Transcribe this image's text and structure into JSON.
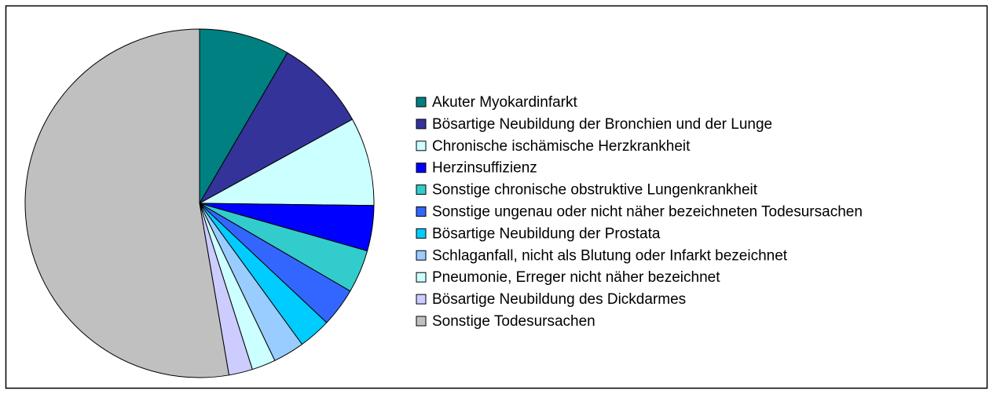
{
  "chart_data": {
    "type": "pie",
    "categories": [
      "Akuter Myokardinfarkt",
      "Bösartige Neubildung der Bronchien und der Lunge",
      "Chronische ischämische Herzkrankheit",
      "Herzinsuffizienz",
      "Sonstige chronische obstruktive Lungenkrankheit",
      "Sonstige ungenau oder nicht näher bezeichneten Todesursachen",
      "Bösartige Neubildung der Prostata",
      "Schlaganfall, nicht als Blutung oder Infarkt bezeichnet",
      "Pneumonie, Erreger nicht näher bezeichnet",
      "Bösartige Neubildung des Dickdarmes",
      "Sonstige Todesursachen"
    ],
    "values": [
      8.4,
      8.6,
      8.2,
      4.2,
      4.0,
      3.6,
      3.0,
      2.9,
      2.2,
      2.2,
      52.7
    ],
    "colors": [
      "#008080",
      "#333399",
      "#ccffff",
      "#0000ff",
      "#33cccc",
      "#3366ff",
      "#00ccff",
      "#99ccff",
      "#ccffff",
      "#ccccff",
      "#c0c0c0"
    ]
  }
}
